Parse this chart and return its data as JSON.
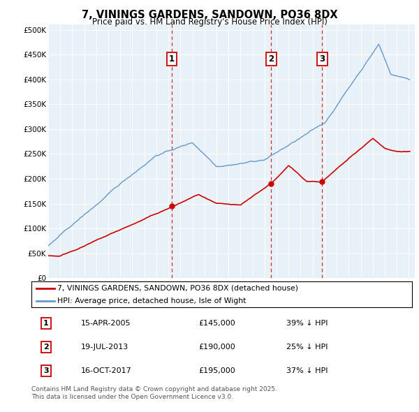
{
  "title": "7, VININGS GARDENS, SANDOWN, PO36 8DX",
  "subtitle": "Price paid vs. HM Land Registry's House Price Index (HPI)",
  "ylabel_ticks": [
    "£0",
    "£50K",
    "£100K",
    "£150K",
    "£200K",
    "£250K",
    "£300K",
    "£350K",
    "£400K",
    "£450K",
    "£500K"
  ],
  "ytick_values": [
    0,
    50000,
    100000,
    150000,
    200000,
    250000,
    300000,
    350000,
    400000,
    450000,
    500000
  ],
  "ylim": [
    0,
    510000
  ],
  "xlim_start": 1995.0,
  "xlim_end": 2025.5,
  "background_color": "#e8f0f8",
  "grid_color": "#ffffff",
  "hpi_color": "#6699cc",
  "price_color": "#cc0000",
  "sale1_date": 2005.29,
  "sale1_price": 145000,
  "sale2_date": 2013.55,
  "sale2_price": 190000,
  "sale3_date": 2017.79,
  "sale3_price": 195000,
  "legend_label1": "7, VININGS GARDENS, SANDOWN, PO36 8DX (detached house)",
  "legend_label2": "HPI: Average price, detached house, Isle of Wight",
  "table_rows": [
    [
      "1",
      "15-APR-2005",
      "£145,000",
      "39% ↓ HPI"
    ],
    [
      "2",
      "19-JUL-2013",
      "£190,000",
      "25% ↓ HPI"
    ],
    [
      "3",
      "16-OCT-2017",
      "£195,000",
      "37% ↓ HPI"
    ]
  ],
  "footer": "Contains HM Land Registry data © Crown copyright and database right 2025.\nThis data is licensed under the Open Government Licence v3.0."
}
